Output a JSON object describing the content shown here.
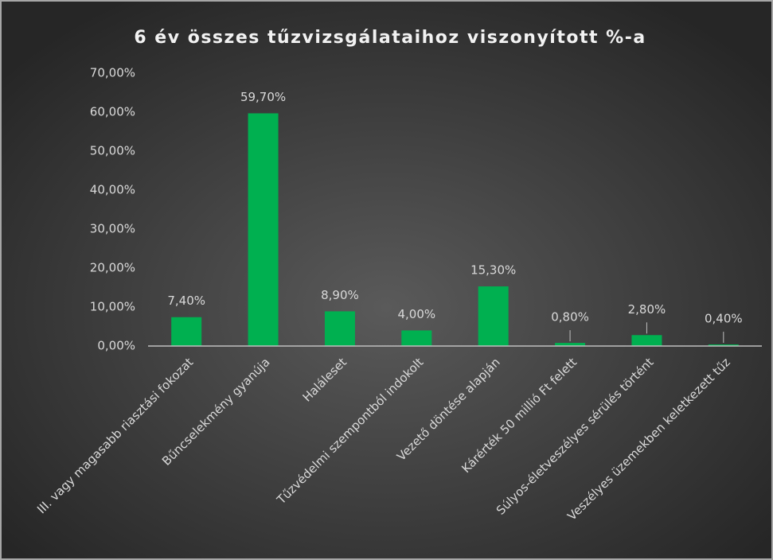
{
  "chart_data": {
    "type": "bar",
    "title": "6 év összes tűzvizsgálataihoz viszonyított %-a",
    "categories": [
      "III. vagy magasabb riasztási fokozat",
      "Bűncselekmény gyanúja",
      "Haláleset",
      "Tűzvédelmi szempontból indokolt",
      "Vezető döntése alapján",
      "Kárérték 50 millió Ft felett",
      "Súlyos-életveszélyes sérülés történt",
      "Veszélyes üzemekben keletkezett tűz"
    ],
    "values": [
      7.4,
      59.7,
      8.9,
      4.0,
      15.3,
      0.8,
      2.8,
      0.4
    ],
    "value_labels": [
      "7,40%",
      "59,70%",
      "8,90%",
      "4,00%",
      "15,30%",
      "0,80%",
      "2,80%",
      "0,40%"
    ],
    "color": "#00b050",
    "ylim": [
      0,
      70
    ],
    "yticks": [
      {
        "value": 0,
        "label": "0,00%"
      },
      {
        "value": 10,
        "label": "10,00%"
      },
      {
        "value": 20,
        "label": "20,00%"
      },
      {
        "value": 30,
        "label": "30,00%"
      },
      {
        "value": 40,
        "label": "40,00%"
      },
      {
        "value": 50,
        "label": "50,00%"
      },
      {
        "value": 60,
        "label": "60,00%"
      },
      {
        "value": 70,
        "label": "70,00%"
      }
    ]
  }
}
